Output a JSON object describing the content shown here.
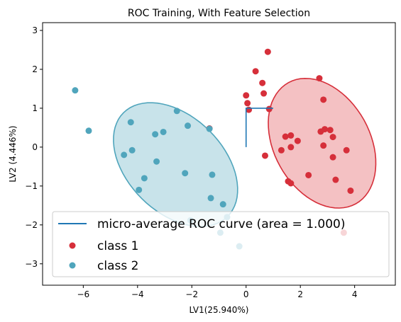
{
  "chart_data": {
    "type": "scatter",
    "title": "ROC Training, With Feature Selection",
    "xlabel": "LV1(25.940%)",
    "ylabel": "LV2 (4.446%)",
    "xlim": [
      -7.5,
      5.5
    ],
    "ylim": [
      -3.55,
      3.2
    ],
    "xticks": [
      -6,
      -4,
      -2,
      0,
      2,
      4
    ],
    "yticks": [
      -3,
      -2,
      -1,
      0,
      1,
      2,
      3
    ],
    "grid": false,
    "legend_position": "lower-right",
    "roc_curve": {
      "label": "micro-average ROC curve (area = 1.000)",
      "color": "#1f77b4",
      "points": [
        [
          0,
          0
        ],
        [
          0,
          1
        ],
        [
          1,
          1
        ]
      ]
    },
    "series": [
      {
        "name": "class 1",
        "color": "#d62f3a",
        "ellipse": {
          "center": [
            2.8,
            0.1
          ],
          "rx": 2.9,
          "ry": 4.2,
          "angle_deg": 29,
          "fill": "#f4c1c3",
          "stroke": "#d62f3a"
        },
        "points": [
          [
            0.8,
            2.45
          ],
          [
            0.35,
            1.95
          ],
          [
            0.6,
            1.65
          ],
          [
            0.65,
            1.38
          ],
          [
            0.0,
            1.33
          ],
          [
            0.05,
            1.13
          ],
          [
            0.1,
            0.96
          ],
          [
            0.85,
            0.98
          ],
          [
            2.7,
            1.77
          ],
          [
            2.85,
            1.22
          ],
          [
            -1.35,
            0.48
          ],
          [
            1.45,
            0.27
          ],
          [
            1.65,
            0.3
          ],
          [
            1.9,
            0.16
          ],
          [
            2.75,
            0.4
          ],
          [
            2.9,
            0.46
          ],
          [
            3.1,
            0.44
          ],
          [
            3.2,
            0.26
          ],
          [
            1.3,
            -0.08
          ],
          [
            1.65,
            0.0
          ],
          [
            2.85,
            0.04
          ],
          [
            3.7,
            -0.08
          ],
          [
            0.7,
            -0.22
          ],
          [
            3.2,
            -0.26
          ],
          [
            2.3,
            -0.72
          ],
          [
            3.3,
            -0.84
          ],
          [
            1.55,
            -0.88
          ],
          [
            1.65,
            -0.93
          ],
          [
            3.85,
            -1.12
          ],
          [
            3.6,
            -2.2
          ]
        ]
      },
      {
        "name": "class 2",
        "color": "#50a5bc",
        "ellipse": {
          "center": [
            -2.6,
            -0.45
          ],
          "rx": 2.9,
          "ry": 4.45,
          "angle_deg": 45,
          "fill": "#c8e3ea",
          "stroke": "#50a5bc"
        },
        "points": [
          [
            -6.3,
            1.46
          ],
          [
            -5.8,
            0.42
          ],
          [
            -4.25,
            0.64
          ],
          [
            -2.55,
            0.93
          ],
          [
            -2.15,
            0.55
          ],
          [
            -3.35,
            0.33
          ],
          [
            -3.05,
            0.39
          ],
          [
            -1.35,
            0.47
          ],
          [
            -4.2,
            -0.08
          ],
          [
            -4.5,
            -0.2
          ],
          [
            -3.3,
            -0.37
          ],
          [
            -2.25,
            -0.67
          ],
          [
            -1.25,
            -0.71
          ],
          [
            -3.75,
            -0.8
          ],
          [
            -3.95,
            -1.1
          ],
          [
            -1.3,
            -1.31
          ],
          [
            -0.85,
            -1.47
          ],
          [
            -2.05,
            -1.88
          ],
          [
            -0.7,
            -1.8
          ],
          [
            -0.95,
            -2.2
          ],
          [
            -0.25,
            -2.55
          ]
        ]
      }
    ]
  }
}
